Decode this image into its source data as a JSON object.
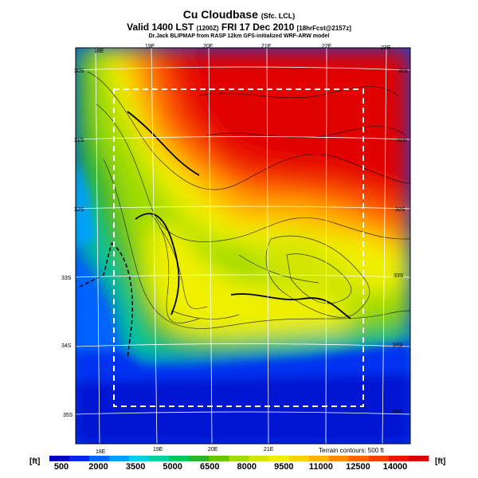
{
  "title": {
    "main": "Cu Cloudbase",
    "main_suffix": "(Sfc. LCL)",
    "valid": "Valid 1400 LST",
    "valid_code": "(1200Z)",
    "date": "FRI 17 Dec 2010",
    "forecast": "[18hrFcst@2157z]",
    "credit": "Dr.Jack BLIPMAP from RASP 12km GFS-initialized WRF-ARW model"
  },
  "map": {
    "top_lon_labels": [
      "18E",
      "19E",
      "20E",
      "21E",
      "22E",
      "23E"
    ],
    "bottom_lon_labels": [
      "18E",
      "19E",
      "20E",
      "21E"
    ],
    "left_lat_labels": [
      "30S",
      "31S",
      "32S",
      "33S",
      "34S",
      "35S"
    ],
    "right_lat_labels": [
      "30S",
      "31S",
      "32S",
      "33S",
      "34S",
      "35S"
    ],
    "terrain_note": "Terrain contours: 500 ft"
  },
  "colorbar": {
    "unit_left": "[ft]",
    "unit_right": "[ft]",
    "labels": [
      "500",
      "2000",
      "3500",
      "5000",
      "6500",
      "8000",
      "9500",
      "11000",
      "12500",
      "14000"
    ],
    "colors": [
      "#0000c8",
      "#0028f0",
      "#0064ff",
      "#00a0ff",
      "#00d2e6",
      "#00d2a0",
      "#00c85a",
      "#28b428",
      "#64c800",
      "#a0dc00",
      "#d2e600",
      "#f0f000",
      "#ffd200",
      "#ffb400",
      "#ff8c00",
      "#ff6400",
      "#ff3c00",
      "#f01400",
      "#dc0000"
    ]
  }
}
